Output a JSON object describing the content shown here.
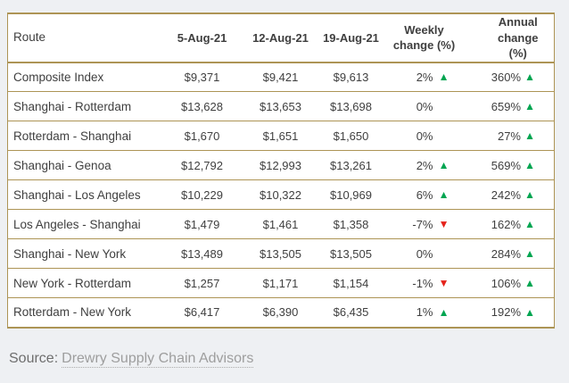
{
  "colors": {
    "page_background": "#EEF0F3",
    "table_background": "#FFFFFF",
    "table_border_gold": "#AD9455",
    "text": "#3F3F3F",
    "up_green": "#00A551",
    "down_red": "#E5231B",
    "source_label": "#6E6E6E",
    "source_link": "#9E9E9E"
  },
  "icons": {
    "up_triangle": "▲",
    "down_triangle": "▼"
  },
  "table_header": {
    "route": "Route",
    "dates": [
      "5-Aug-21",
      "12-Aug-21",
      "19-Aug-21"
    ],
    "weekly_line1": "Weekly",
    "weekly_line2": "change (%)",
    "annual_line1": "Annual",
    "annual_line2": "change (%)"
  },
  "chart_data": {
    "type": "table",
    "columns": [
      "Route",
      "5-Aug-21",
      "12-Aug-21",
      "19-Aug-21",
      "Weekly change (%)",
      "Annual change (%)"
    ],
    "rows": [
      {
        "route": "Composite Index",
        "values": [
          "$9,371",
          "$9,421",
          "$9,613"
        ],
        "weekly": {
          "text": "2%",
          "dir": "up"
        },
        "annual": {
          "text": "360%",
          "dir": "up"
        }
      },
      {
        "route": "Shanghai - Rotterdam",
        "values": [
          "$13,628",
          "$13,653",
          "$13,698"
        ],
        "weekly": {
          "text": "0%",
          "dir": "none"
        },
        "annual": {
          "text": "659%",
          "dir": "up"
        }
      },
      {
        "route": "Rotterdam - Shanghai",
        "values": [
          "$1,670",
          "$1,651",
          "$1,650"
        ],
        "weekly": {
          "text": "0%",
          "dir": "none"
        },
        "annual": {
          "text": "27%",
          "dir": "up"
        }
      },
      {
        "route": "Shanghai - Genoa",
        "values": [
          "$12,792",
          "$12,993",
          "$13,261"
        ],
        "weekly": {
          "text": "2%",
          "dir": "up"
        },
        "annual": {
          "text": "569%",
          "dir": "up"
        }
      },
      {
        "route": "Shanghai - Los Angeles",
        "values": [
          "$10,229",
          "$10,322",
          "$10,969"
        ],
        "weekly": {
          "text": "6%",
          "dir": "up"
        },
        "annual": {
          "text": "242%",
          "dir": "up"
        }
      },
      {
        "route": "Los Angeles - Shanghai",
        "values": [
          "$1,479",
          "$1,461",
          "$1,358"
        ],
        "weekly": {
          "text": "-7%",
          "dir": "down"
        },
        "annual": {
          "text": "162%",
          "dir": "up"
        }
      },
      {
        "route": "Shanghai - New York",
        "values": [
          "$13,489",
          "$13,505",
          "$13,505"
        ],
        "weekly": {
          "text": "0%",
          "dir": "none"
        },
        "annual": {
          "text": "284%",
          "dir": "up"
        }
      },
      {
        "route": "New York - Rotterdam",
        "values": [
          "$1,257",
          "$1,171",
          "$1,154"
        ],
        "weekly": {
          "text": "-1%",
          "dir": "down"
        },
        "annual": {
          "text": "106%",
          "dir": "up"
        }
      },
      {
        "route": "Rotterdam - New York",
        "values": [
          "$6,417",
          "$6,390",
          "$6,435"
        ],
        "weekly": {
          "text": "1%",
          "dir": "up"
        },
        "annual": {
          "text": "192%",
          "dir": "up"
        }
      }
    ]
  },
  "source": {
    "label": "Source:",
    "link_text": "Drewry Supply Chain Advisors"
  }
}
